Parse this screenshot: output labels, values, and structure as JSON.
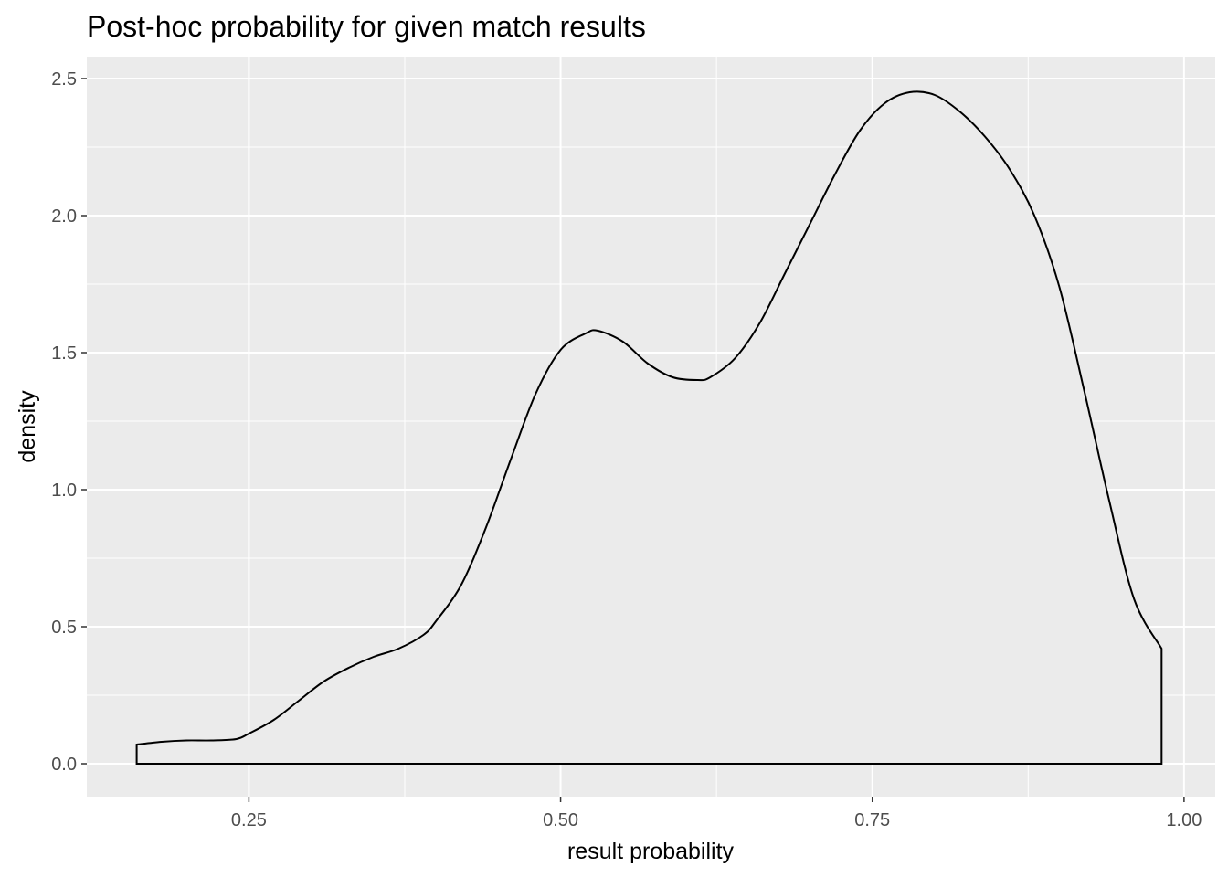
{
  "chart_data": {
    "type": "area",
    "title": "Post-hoc probability for given match results",
    "xlabel": "result probability",
    "ylabel": "density",
    "xlim": [
      0.12,
      1.025
    ],
    "ylim": [
      -0.12,
      2.58
    ],
    "x_major_ticks": [
      0.25,
      0.5,
      0.75,
      1.0
    ],
    "x_tick_labels": [
      "0.25",
      "0.50",
      "0.75",
      "1.00"
    ],
    "x_minor_ticks": [
      0.375,
      0.625,
      0.875
    ],
    "y_major_ticks": [
      0.0,
      0.5,
      1.0,
      1.5,
      2.0,
      2.5
    ],
    "y_tick_labels": [
      "0.0",
      "0.5",
      "1.0",
      "1.5",
      "2.0",
      "2.5"
    ],
    "y_minor_ticks": [
      0.25,
      0.75,
      1.25,
      1.75,
      2.25
    ],
    "grid": true,
    "panel_background": "#EBEBEB",
    "grid_color": "#FFFFFF",
    "line_color": "#000000",
    "fill_color": "#EBEBEB",
    "series": [
      {
        "x": [
          0.16,
          0.18,
          0.2,
          0.22,
          0.24,
          0.25,
          0.27,
          0.29,
          0.31,
          0.33,
          0.35,
          0.37,
          0.39,
          0.4,
          0.42,
          0.44,
          0.46,
          0.48,
          0.5,
          0.52,
          0.53,
          0.55,
          0.57,
          0.59,
          0.61,
          0.62,
          0.64,
          0.66,
          0.68,
          0.7,
          0.72,
          0.74,
          0.76,
          0.78,
          0.8,
          0.82,
          0.84,
          0.86,
          0.88,
          0.9,
          0.92,
          0.94,
          0.96,
          0.982
        ],
        "y": [
          0.07,
          0.08,
          0.085,
          0.085,
          0.09,
          0.11,
          0.16,
          0.23,
          0.3,
          0.35,
          0.39,
          0.42,
          0.47,
          0.52,
          0.65,
          0.86,
          1.11,
          1.35,
          1.51,
          1.57,
          1.58,
          1.54,
          1.46,
          1.41,
          1.4,
          1.41,
          1.48,
          1.61,
          1.79,
          1.97,
          2.15,
          2.31,
          2.41,
          2.45,
          2.44,
          2.38,
          2.29,
          2.17,
          2.0,
          1.74,
          1.36,
          0.96,
          0.6,
          0.42
        ]
      }
    ]
  }
}
